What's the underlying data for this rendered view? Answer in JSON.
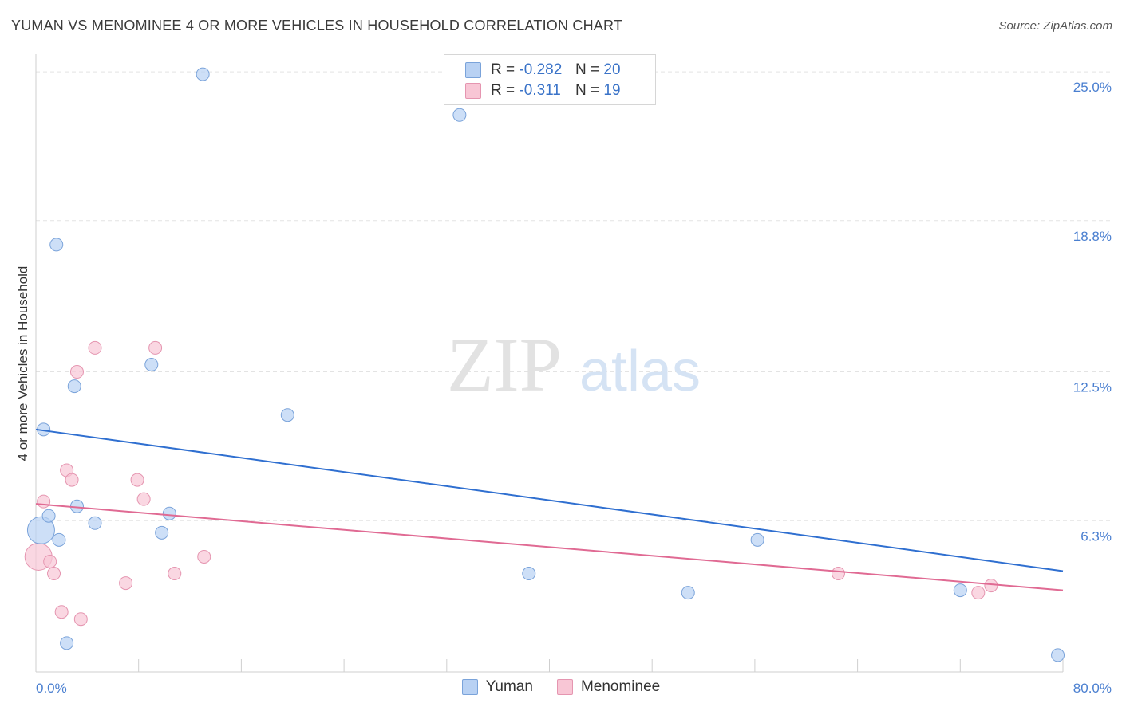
{
  "header": {
    "title": "YUMAN VS MENOMINEE 4 OR MORE VEHICLES IN HOUSEHOLD CORRELATION CHART",
    "source": "Source: ZipAtlas.com"
  },
  "watermark": {
    "zip": "ZIP",
    "atlas": "atlas"
  },
  "legend_top": {
    "rows": [
      {
        "r_label": "R =",
        "r_value": "-0.282",
        "n_label": "N =",
        "n_value": "20"
      },
      {
        "r_label": "R =",
        "r_value": "-0.311",
        "n_label": "N =",
        "n_value": "19"
      }
    ]
  },
  "colors": {
    "yuman_fill": "#b8d1f3",
    "yuman_stroke": "#7aa3da",
    "yuman_line": "#2f6fd0",
    "menominee_fill": "#f8c6d5",
    "menominee_stroke": "#e595b0",
    "menominee_line": "#e06a93",
    "grid": "#e3e3e3",
    "axis_label": "#4a7fd0"
  },
  "chart_data": {
    "type": "scatter",
    "title": "YUMAN VS MENOMINEE 4 OR MORE VEHICLES IN HOUSEHOLD CORRELATION CHART",
    "xlabel": "",
    "ylabel": "4 or more Vehicles in Household",
    "xlim": [
      0,
      80
    ],
    "ylim": [
      0,
      25.6
    ],
    "x_tick_labels": [
      "0.0%",
      "80.0%"
    ],
    "y_ticks": [
      6.3,
      12.5,
      18.8,
      25.0
    ],
    "y_tick_labels": [
      "6.3%",
      "12.5%",
      "18.8%",
      "25.0%"
    ],
    "grid": true,
    "legend_position": "bottom",
    "series": [
      {
        "name": "Yuman",
        "r": -0.282,
        "n": 20,
        "trend": {
          "x0": 0,
          "y0": 10.1,
          "x1": 80,
          "y1": 4.2
        },
        "points": [
          {
            "x": 0.4,
            "y": 5.9,
            "size": "large"
          },
          {
            "x": 0.6,
            "y": 10.1
          },
          {
            "x": 1.0,
            "y": 6.5
          },
          {
            "x": 1.6,
            "y": 17.8
          },
          {
            "x": 1.8,
            "y": 5.5
          },
          {
            "x": 2.4,
            "y": 1.2
          },
          {
            "x": 3.0,
            "y": 11.9
          },
          {
            "x": 3.2,
            "y": 6.9
          },
          {
            "x": 4.6,
            "y": 6.2
          },
          {
            "x": 9.0,
            "y": 12.8
          },
          {
            "x": 9.8,
            "y": 5.8
          },
          {
            "x": 10.4,
            "y": 6.6
          },
          {
            "x": 13.0,
            "y": 24.9
          },
          {
            "x": 19.6,
            "y": 10.7
          },
          {
            "x": 33.0,
            "y": 23.2
          },
          {
            "x": 38.4,
            "y": 4.1
          },
          {
            "x": 50.8,
            "y": 3.3
          },
          {
            "x": 56.2,
            "y": 5.5
          },
          {
            "x": 72.0,
            "y": 3.4
          },
          {
            "x": 79.6,
            "y": 0.7
          }
        ]
      },
      {
        "name": "Menominee",
        "r": -0.311,
        "n": 19,
        "trend": {
          "x0": 0,
          "y0": 7.0,
          "x1": 80,
          "y1": 3.4
        },
        "points": [
          {
            "x": 0.2,
            "y": 4.8,
            "size": "large"
          },
          {
            "x": 0.6,
            "y": 7.1
          },
          {
            "x": 1.1,
            "y": 4.6
          },
          {
            "x": 1.4,
            "y": 4.1
          },
          {
            "x": 2.0,
            "y": 2.5
          },
          {
            "x": 2.4,
            "y": 8.4
          },
          {
            "x": 2.8,
            "y": 8.0
          },
          {
            "x": 3.2,
            "y": 12.5
          },
          {
            "x": 3.5,
            "y": 2.2
          },
          {
            "x": 4.6,
            "y": 13.5
          },
          {
            "x": 7.0,
            "y": 3.7
          },
          {
            "x": 7.9,
            "y": 8.0
          },
          {
            "x": 8.4,
            "y": 7.2
          },
          {
            "x": 9.3,
            "y": 13.5
          },
          {
            "x": 10.8,
            "y": 4.1
          },
          {
            "x": 13.1,
            "y": 4.8
          },
          {
            "x": 62.5,
            "y": 4.1
          },
          {
            "x": 73.4,
            "y": 3.3
          },
          {
            "x": 74.4,
            "y": 3.6
          }
        ]
      }
    ]
  }
}
